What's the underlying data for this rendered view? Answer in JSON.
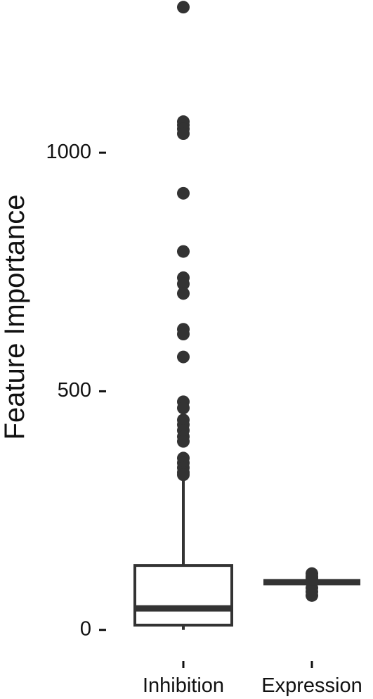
{
  "chart_data": {
    "type": "box",
    "title": "",
    "xlabel": "",
    "ylabel": "Feature Importance",
    "ylim": [
      -80,
      1320
    ],
    "yticks": [
      0,
      500,
      1000
    ],
    "ytick_labels": [
      "0",
      "500",
      "1000"
    ],
    "categories": [
      "Inhibition",
      "Expression"
    ],
    "grid": false,
    "legend": "none",
    "colors": {
      "stroke": "#333333",
      "outlier": "#333333",
      "text": "#111111",
      "background": "#ffffff"
    },
    "boxes": [
      {
        "category": "Inhibition",
        "whisker_low": 0,
        "q1": 10,
        "median": 45,
        "q3": 135,
        "whisker_high": 320,
        "outliers": [
          1305,
          1065,
          1058,
          1050,
          1040,
          915,
          793,
          738,
          725,
          705,
          630,
          620,
          572,
          478,
          465,
          440,
          430,
          418,
          405,
          395,
          360,
          350,
          340,
          330,
          325
        ]
      },
      {
        "category": "Expression",
        "whisker_low": 100,
        "q1": 100,
        "median": 100,
        "q3": 100,
        "whisker_high": 100,
        "outliers": [
          118,
          112,
          108,
          88,
          80,
          72
        ]
      }
    ]
  }
}
